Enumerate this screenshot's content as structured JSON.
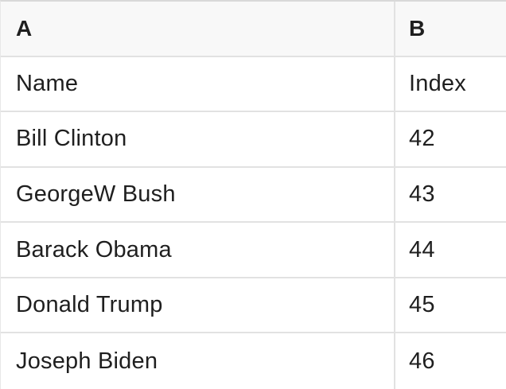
{
  "table": {
    "column_headers": [
      "A",
      "B"
    ],
    "rows": [
      [
        "Name",
        "Index"
      ],
      [
        "Bill Clinton",
        "42"
      ],
      [
        "GeorgeW Bush",
        "43"
      ],
      [
        "Barack Obama",
        "44"
      ],
      [
        "Donald Trump",
        "45"
      ],
      [
        "Joseph Biden",
        "46"
      ]
    ]
  },
  "colors": {
    "header_bg": "#f8f8f8",
    "cell_bg": "#ffffff",
    "border": "#e2e2e2",
    "text": "#1f1f1f"
  }
}
